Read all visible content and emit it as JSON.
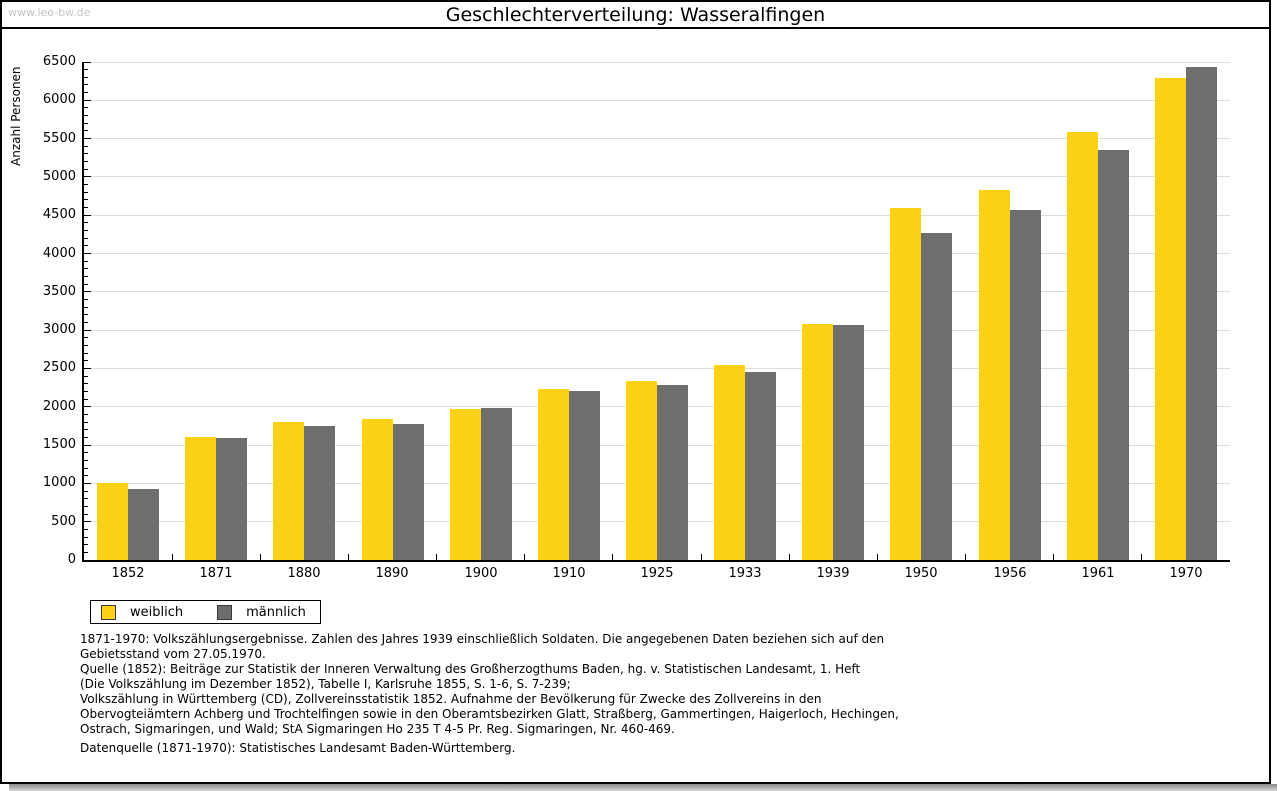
{
  "watermark": "www.leo-bw.de",
  "header": {
    "title": "Geschlechterverteilung: Wasseralfingen"
  },
  "chart_data": {
    "type": "bar",
    "title": "Geschlechterverteilung: Wasseralfingen",
    "xlabel": "",
    "ylabel": "Anzahl Personen",
    "ylim": [
      0,
      6500
    ],
    "y_major_step": 500,
    "y_minor_step": 100,
    "grid": "horizontal",
    "legend_position": "bottom-left",
    "categories": [
      "1852",
      "1871",
      "1880",
      "1890",
      "1900",
      "1910",
      "1925",
      "1933",
      "1939",
      "1950",
      "1956",
      "1961",
      "1970"
    ],
    "series": [
      {
        "name": "weiblich",
        "color": "#FCD116",
        "values": [
          1000,
          1605,
          1800,
          1840,
          1970,
          2230,
          2340,
          2540,
          3080,
          4595,
          4830,
          5590,
          6290
        ]
      },
      {
        "name": "männlich",
        "color": "#6E6E6E",
        "values": [
          925,
          1590,
          1745,
          1770,
          1990,
          2205,
          2290,
          2455,
          3065,
          4270,
          4565,
          5355,
          6430
        ]
      }
    ]
  },
  "legend": {
    "items": [
      {
        "label": "weiblich",
        "color": "#FCD116"
      },
      {
        "label": "männlich",
        "color": "#6E6E6E"
      }
    ]
  },
  "footnotes": [
    "1871-1970: Volkszählungsergebnisse. Zahlen des Jahres 1939 einschließlich Soldaten. Die angegebenen Daten beziehen sich auf den",
    "Gebietsstand vom 27.05.1970.",
    "Quelle (1852): Beiträge zur Statistik der Inneren Verwaltung des Großherzogthums Baden, hg. v. Statistischen Landesamt, 1. Heft",
    "(Die Volkszählung im Dezember 1852), Tabelle I, Karlsruhe 1855, S. 1-6, S. 7-239;",
    "Volkszählung in Württemberg (CD), Zollvereinsstatistik 1852. Aufnahme der Bevölkerung für Zwecke des Zollvereins in den",
    "Obervogteiämtern Achberg und Trochtelfingen sowie in den Oberamtsbezirken Glatt, Straßberg, Gammertingen, Haigerloch, Hechingen,",
    "Ostrach, Sigmaringen, und Wald; StA Sigmaringen Ho 235 T 4-5 Pr. Reg. Sigmaringen, Nr. 460-469."
  ],
  "datenquelle": "Datenquelle (1871-1970): Statistisches Landesamt Baden-Württemberg.",
  "colors": {
    "weiblich": "#FCD116",
    "maennlich": "#6E6E6E",
    "gridline": "#dcdcdc",
    "watermark": "#c4c4c4",
    "shadow": "#8a8a8a"
  }
}
